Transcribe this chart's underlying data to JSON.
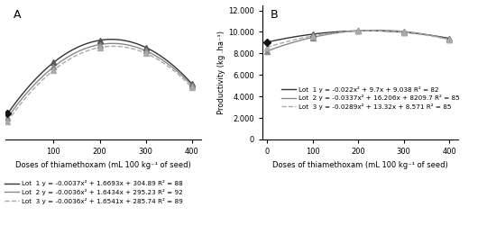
{
  "panel_A": {
    "title": "A",
    "xlabel": "Doses of thiamethoxam (mL 100 kg⁻¹ of seed)",
    "ylabel": "",
    "xlim": [
      -5,
      420
    ],
    "ylim": [
      240,
      580
    ],
    "yticks": [],
    "xticks": [
      100,
      200,
      300,
      400
    ],
    "lots": [
      {
        "name": "Lot  1",
        "eq": "y = -0.0037x² + 1.6693x + 304.89 R² = 88",
        "a": -0.0037,
        "b": 1.6693,
        "c": 304.89,
        "points_x": [
          0,
          100,
          200,
          300,
          400
        ],
        "color": "#333333",
        "linestyle": "-",
        "marker": "^",
        "markercolor": "#555555",
        "linewidth": 1.0
      },
      {
        "name": "Lot  2",
        "eq": "y = -0.0036x² + 1.6434x + 295.23 R² = 92",
        "a": -0.0036,
        "b": 1.6434,
        "c": 295.23,
        "points_x": [
          0,
          100,
          200,
          300,
          400
        ],
        "color": "#888888",
        "linestyle": "-",
        "marker": "^",
        "markercolor": "#888888",
        "linewidth": 1.0
      },
      {
        "name": "Lot  3",
        "eq": "y = -0.0036x² + 1.6541x + 285.74 R² = 89",
        "a": -0.0036,
        "b": 1.6541,
        "c": 285.74,
        "points_x": [
          0,
          100,
          200,
          300,
          400
        ],
        "color": "#aaaaaa",
        "linestyle": "--",
        "marker": "^",
        "markercolor": "#aaaaaa",
        "linewidth": 1.0
      }
    ],
    "lot1_marker": "D",
    "lot1_markercolor": "#111111"
  },
  "panel_B": {
    "title": "B",
    "xlabel": "Doses of thiamethoxam (mL 100 kg⁻¹ of seed)",
    "ylabel": "Productivity (kg .ha⁻¹)",
    "xlim": [
      -10,
      420
    ],
    "ylim": [
      0,
      12500
    ],
    "yticks": [
      0,
      2000,
      4000,
      6000,
      8000,
      10000,
      12000
    ],
    "ytick_labels": [
      "0",
      "2.000",
      "4.000",
      "6.000",
      "8.000",
      "10.000",
      "12.000"
    ],
    "xticks": [
      0,
      100,
      200,
      300,
      400
    ],
    "lots": [
      {
        "name": "Lot  1",
        "eq": "y = -0.022x² + 9.7x + 9.038 R² = 82",
        "a": -0.022,
        "b": 9.7,
        "c": 9038,
        "points_x": [
          0,
          100,
          200,
          300,
          400
        ],
        "color": "#333333",
        "linestyle": "-",
        "marker": "^",
        "markercolor": "#555555",
        "linewidth": 1.0
      },
      {
        "name": "Lot  2",
        "eq": "y = -0.0337x² + 16.206x + 8209.7 R² = 85",
        "a": -0.0337,
        "b": 16.206,
        "c": 8209.7,
        "points_x": [
          0,
          100,
          200,
          300,
          400
        ],
        "color": "#888888",
        "linestyle": "-",
        "marker": "^",
        "markercolor": "#888888",
        "linewidth": 1.0
      },
      {
        "name": "Lot  3",
        "eq": "y = -0.0289x² + 13.32x + 8.571 R² = 85",
        "a": -0.0289,
        "b": 13.32,
        "c": 8571,
        "points_x": [
          0,
          100,
          200,
          300,
          400
        ],
        "color": "#aaaaaa",
        "linestyle": "--",
        "marker": "^",
        "markercolor": "#aaaaaa",
        "linewidth": 1.0
      }
    ],
    "lot1_marker": "D",
    "lot1_markercolor": "#111111"
  },
  "legend_fontsize": 5.2,
  "label_fontsize": 6.0,
  "tick_fontsize": 6.0,
  "title_fontsize": 9,
  "background_color": "#ffffff"
}
